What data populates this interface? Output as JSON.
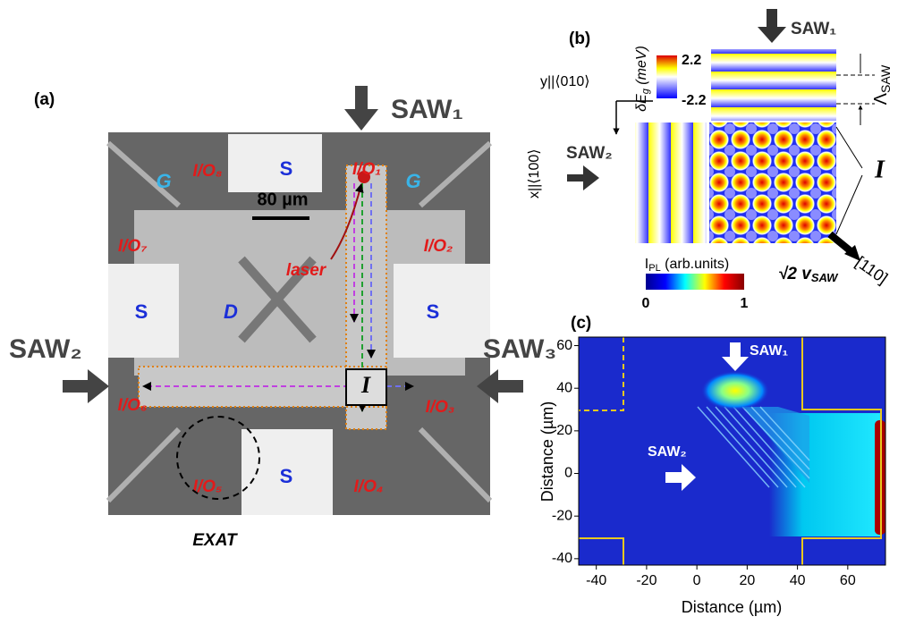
{
  "panel_a": {
    "label": "(a)",
    "saw1": "SAW₁",
    "saw2": "SAW₂",
    "saw3": "SAW₃",
    "s_top": "S",
    "s_left": "S",
    "s_right": "S",
    "s_bottom": "S",
    "g_left": "G",
    "g_right": "G",
    "d": "D",
    "io1": "I/O₁",
    "io2": "I/O₂",
    "io3": "I/O₃",
    "io4": "I/O₄",
    "io5": "I/O₅",
    "io6": "I/O₆",
    "io7": "I/O₇",
    "io8": "I/O₈",
    "scale": "80 µm",
    "laser": "laser",
    "intersection": "I",
    "exat": "EXAT"
  },
  "panel_b": {
    "label": "(b)",
    "saw1": "SAW₁",
    "saw2": "SAW₂",
    "cbar_title_main": "δE",
    "cbar_title_sub": "g",
    "cbar_title_unit": " (meV)",
    "cbar_max": "2.2",
    "cbar_min": "-2.2",
    "y_axis": "y||⟨010⟩",
    "x_axis": "x||⟨100⟩",
    "lambda": "Λ",
    "lambda_sub": "SAW",
    "intersection": "I",
    "velocity_main": "√2 v",
    "velocity_sub": "SAW",
    "direction": "[110]"
  },
  "panel_c": {
    "label": "(c)",
    "cbar_main": "I",
    "cbar_sub": "PL",
    "cbar_unit": " (arb.units)",
    "cbar_min": "0",
    "cbar_max": "1",
    "saw1": "SAW₁",
    "saw2": "SAW₂",
    "xlabel": "Distance (µm)",
    "ylabel": "Distance (µm)",
    "xlim": [
      -47,
      75
    ],
    "ylim": [
      -43,
      64
    ],
    "xticks": [
      -40,
      -20,
      0,
      20,
      40,
      60
    ],
    "yticks": [
      -40,
      -20,
      0,
      20,
      40,
      60
    ]
  }
}
